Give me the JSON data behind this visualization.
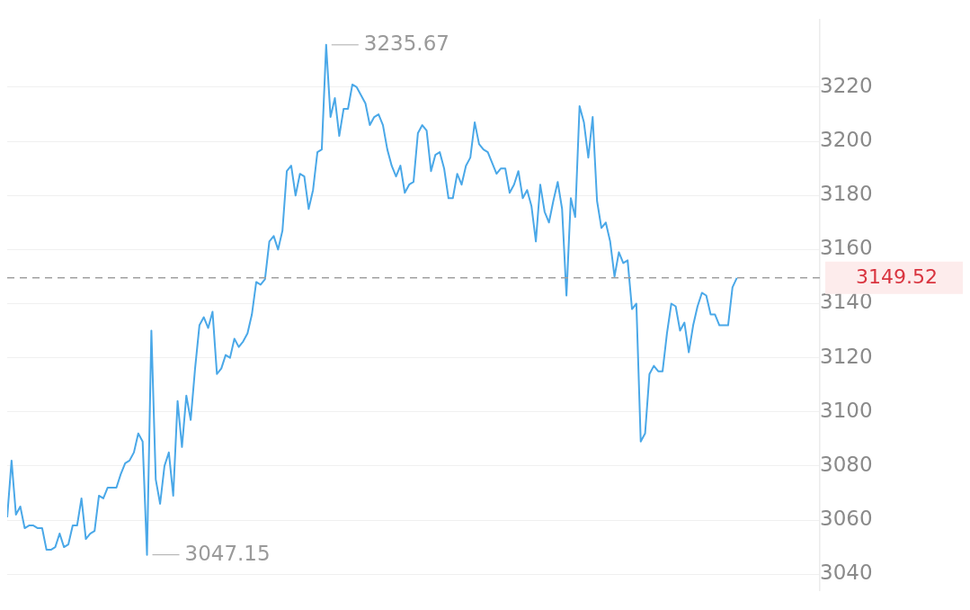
{
  "chart_data": {
    "type": "line",
    "categories": [
      null,
      null,
      null,
      null,
      null,
      null,
      null,
      null,
      null,
      null,
      null,
      null,
      null,
      null,
      null,
      null,
      null,
      null,
      null,
      null,
      null,
      null,
      null,
      null,
      null,
      null,
      null,
      null,
      null,
      null,
      null,
      null,
      null,
      null,
      null,
      null,
      null,
      null,
      null,
      null,
      null,
      null,
      null,
      null,
      null,
      null,
      null,
      null,
      null,
      null,
      null,
      null,
      null,
      null,
      null,
      null,
      null,
      null,
      null,
      null,
      null,
      null,
      null,
      null,
      null,
      null,
      null,
      null,
      null,
      null,
      null,
      null,
      null,
      null,
      null,
      null,
      null,
      null,
      null,
      null,
      null,
      null,
      null,
      null,
      null,
      null,
      null,
      null,
      null,
      null,
      null,
      null,
      null,
      null,
      null,
      null,
      null,
      null,
      null,
      null,
      null,
      null,
      null,
      null,
      null,
      null,
      null,
      null,
      null,
      null,
      null,
      null,
      null,
      null,
      null,
      null,
      null,
      null,
      null,
      null,
      null,
      null,
      null,
      null,
      null,
      null,
      null,
      null,
      null,
      null,
      null,
      null,
      null,
      null,
      null,
      null,
      null,
      null,
      null,
      null,
      null,
      null,
      null,
      null,
      null,
      null,
      null,
      null,
      null,
      null,
      null,
      null,
      null,
      null,
      null,
      null,
      null,
      null,
      null,
      null,
      null,
      null,
      null,
      null,
      null,
      null,
      null,
      null,
      null,
      null,
      null,
      null,
      null,
      null,
      null,
      null,
      null,
      null,
      null,
      null,
      null,
      null,
      null,
      null,
      null,
      null,
      null
    ],
    "series": [
      {
        "color": "#4aa8e8",
        "values": [
          3061,
          3082,
          3062,
          3065,
          3057,
          3058,
          3058,
          3057,
          3057,
          3049,
          3049,
          3050,
          3055,
          3050,
          3051,
          3058,
          3058,
          3068,
          3053,
          3055,
          3056,
          3069,
          3068,
          3072,
          3072,
          3072,
          3077,
          3081,
          3082,
          3085,
          3092,
          3089,
          3047.15,
          3130,
          3075,
          3066,
          3080,
          3085,
          3069,
          3104,
          3087,
          3106,
          3097,
          3116,
          3132,
          3135,
          3131,
          3137,
          3114,
          3116,
          3121,
          3120,
          3127,
          3124,
          3126,
          3129,
          3136,
          3148,
          3147,
          3149,
          3163,
          3165,
          3160,
          3167,
          3189,
          3191,
          3180,
          3188,
          3187,
          3175,
          3182,
          3196,
          3197,
          3235.67,
          3209,
          3216,
          3202,
          3212,
          3212,
          3221,
          3220,
          3217,
          3214,
          3206,
          3209,
          3210,
          3206,
          3197,
          3191,
          3187,
          3191,
          3181,
          3184,
          3185,
          3203,
          3206,
          3204,
          3189,
          3195,
          3196,
          3190,
          3179,
          3179,
          3188,
          3184,
          3191,
          3194,
          3207,
          3199,
          3197,
          3196,
          3192,
          3188,
          3190,
          3190,
          3181,
          3184,
          3189,
          3179,
          3182,
          3176,
          3163,
          3184,
          3174,
          3170,
          3178,
          3185,
          3175,
          3143,
          3179,
          3172,
          3213,
          3207,
          3194,
          3209,
          3178,
          3168,
          3170,
          3163,
          3150,
          3159,
          3155,
          3156,
          3138,
          3140,
          3089,
          3092,
          3114,
          3117,
          3115,
          3115,
          3129,
          3140,
          3139,
          3130,
          3133,
          3122,
          3132,
          3139,
          3144,
          3143,
          3136,
          3136,
          3132,
          3132,
          3132,
          3146,
          3149.52,
          null,
          null,
          null,
          null,
          null,
          null,
          null,
          null,
          null,
          null,
          null,
          null,
          null,
          null,
          null,
          null,
          null,
          null,
          null
        ]
      }
    ],
    "ylim": [
      3034,
      3245
    ],
    "yticks": [
      3040,
      3060,
      3080,
      3100,
      3120,
      3140,
      3160,
      3180,
      3200,
      3220
    ],
    "grid": "y",
    "marker": "none",
    "line_style": "solid",
    "legend": false,
    "tick_labels": "y",
    "ref_lines": [
      {
        "axis": "y",
        "value": 3149.52,
        "label": "3149.52",
        "color": "#a0a0a0",
        "line_style": "dashed"
      }
    ],
    "annotations": [
      "3235.67",
      "3047.15"
    ]
  }
}
